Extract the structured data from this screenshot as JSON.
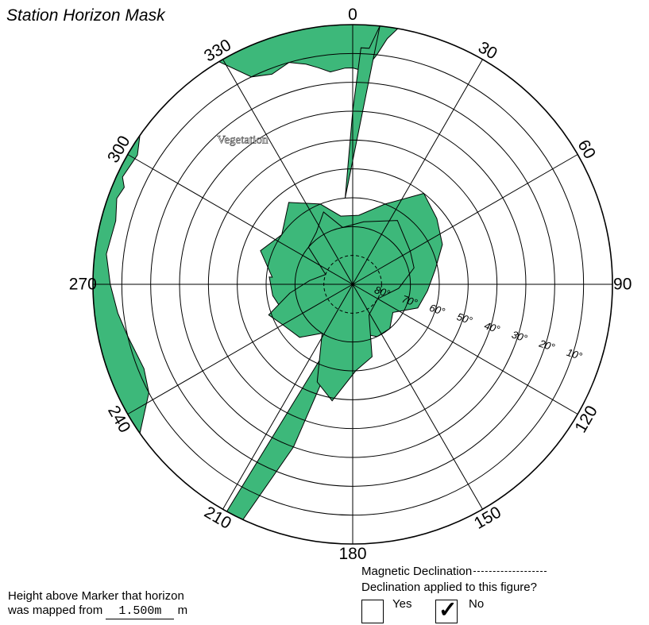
{
  "title": "Station Horizon Mask",
  "azimuth_labels": [
    {
      "text": "0",
      "deg": 0
    },
    {
      "text": "30",
      "deg": 30
    },
    {
      "text": "60",
      "deg": 60
    },
    {
      "text": "90",
      "deg": 90
    },
    {
      "text": "120",
      "deg": 120
    },
    {
      "text": "150",
      "deg": 150
    },
    {
      "text": "180",
      "deg": 180
    },
    {
      "text": "210",
      "deg": 210
    },
    {
      "text": "240",
      "deg": 240
    },
    {
      "text": "270",
      "deg": 270
    },
    {
      "text": "300",
      "deg": 300
    },
    {
      "text": "330",
      "deg": 330
    }
  ],
  "elevation_labels": [
    "80°",
    "70°",
    "60°",
    "50°",
    "40°",
    "30°",
    "20°",
    "10°"
  ],
  "obstruction_label": "Vegetation",
  "colors": {
    "obstruction": "#3db87a",
    "grid": "#000000"
  },
  "mask_outer": [
    [
      -31,
      0
    ],
    [
      -26,
      10
    ],
    [
      -21,
      12
    ],
    [
      -16,
      10
    ],
    [
      -12,
      12
    ],
    [
      -9,
      14
    ],
    [
      -6,
      16
    ],
    [
      -2,
      15
    ],
    [
      0,
      15
    ],
    [
      3,
      16
    ],
    [
      6,
      10
    ],
    [
      8,
      4
    ],
    [
      10,
      0
    ]
  ],
  "mask_south": [
    [
      -125,
      0
    ],
    [
      -118,
      10
    ],
    [
      -112,
      12
    ],
    [
      -103,
      10
    ],
    [
      -97,
      8
    ],
    [
      -90,
      6
    ],
    [
      -83,
      4
    ],
    [
      -75,
      5
    ],
    [
      -70,
      3
    ],
    [
      -67,
      4
    ],
    [
      -65,
      2
    ],
    [
      -59,
      3
    ],
    [
      -55,
      0
    ]
  ],
  "mask_wedge": [
    [
      -5,
      60
    ],
    [
      0,
      30
    ],
    [
      2,
      8
    ],
    [
      4,
      8
    ],
    [
      6,
      0
    ]
  ],
  "blob_north": [
    [
      -85,
      62
    ],
    [
      -70,
      56
    ],
    [
      -55,
      60
    ],
    [
      -38,
      54
    ],
    [
      -22,
      60
    ],
    [
      -10,
      66
    ],
    [
      5,
      66
    ],
    [
      22,
      60
    ],
    [
      38,
      50
    ],
    [
      52,
      53
    ],
    [
      66,
      56
    ],
    [
      80,
      61
    ],
    [
      95,
      64
    ],
    [
      110,
      66
    ],
    [
      125,
      73
    ],
    [
      140,
      70
    ],
    [
      155,
      70
    ],
    [
      165,
      72
    ],
    [
      175,
      77
    ],
    [
      185,
      79
    ],
    [
      195,
      74
    ],
    [
      208,
      75
    ],
    [
      220,
      68
    ],
    [
      235,
      68
    ],
    [
      250,
      64
    ],
    [
      262,
      62
    ],
    [
      275,
      61
    ]
  ],
  "blob_south": [
    [
      152,
      78
    ],
    [
      165,
      64
    ],
    [
      178,
      60
    ],
    [
      190,
      49
    ],
    [
      200,
      54
    ],
    [
      212,
      70
    ],
    [
      225,
      64
    ],
    [
      240,
      62
    ],
    [
      250,
      59
    ],
    [
      262,
      68
    ],
    [
      275,
      75
    ],
    [
      290,
      80
    ],
    [
      310,
      70
    ],
    [
      325,
      68
    ],
    [
      338,
      63
    ],
    [
      350,
      70
    ],
    [
      10,
      68
    ],
    [
      35,
      63
    ],
    [
      60,
      67
    ],
    [
      75,
      68
    ],
    [
      95,
      74
    ],
    [
      120,
      80
    ]
  ],
  "spike_sw": [
    [
      196,
      62
    ],
    [
      202,
      66
    ],
    [
      209,
      0
    ],
    [
      205,
      0
    ],
    [
      200,
      30
    ]
  ],
  "height_note": {
    "line1": "Height above Marker that horizon",
    "line2_prefix": "was mapped from",
    "value": "1.500m",
    "unit": "m"
  },
  "declination": {
    "label": "Magnetic Declination",
    "question": "Declination applied to this figure?",
    "yes_label": "Yes",
    "no_label": "No",
    "yes_checked": false,
    "no_checked": true,
    "check_mark": "✓"
  }
}
